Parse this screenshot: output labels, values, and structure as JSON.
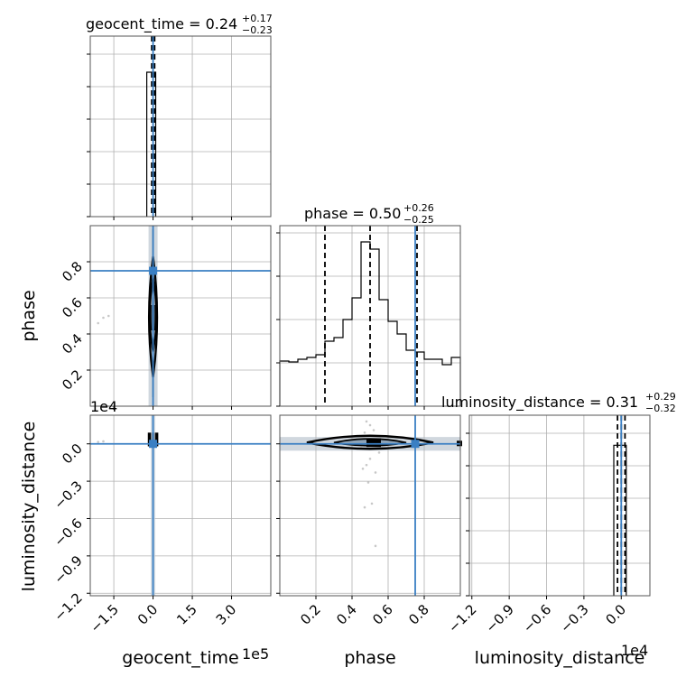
{
  "chart_data": {
    "type": "corner",
    "parameters": [
      "geocent_time",
      "phase",
      "luminosity_distance"
    ],
    "injection": {
      "geocent_time": 0,
      "phase": 0.75,
      "luminosity_distance": 0
    },
    "colors": {
      "injection": "#3a7fc3",
      "hist": "#000000",
      "grid": "#b0b0b0",
      "fill": "#c8d0d8"
    },
    "titles": {
      "geocent_time": {
        "name": "geocent_time",
        "median": "0.24",
        "plus": "+0.17",
        "minus": "−0.23"
      },
      "phase": {
        "name": "phase",
        "median": "0.50",
        "plus": "+0.26",
        "minus": "−0.25"
      },
      "luminosity_distance": {
        "name": "luminosity_distance",
        "median": "0.31",
        "plus": "+0.29",
        "minus": "−0.32"
      }
    },
    "axes": {
      "geocent_time": {
        "label": "geocent_time",
        "range": [
          -240000,
          450000
        ],
        "ticks": [
          -150000,
          0,
          150000,
          300000
        ],
        "tick_labels": [
          "−1.5",
          "0.0",
          "1.5",
          "3.0"
        ],
        "scale_label": "1e5"
      },
      "phase": {
        "label": "phase",
        "range": [
          0.0,
          1.0
        ],
        "ticks": [
          0.2,
          0.4,
          0.6,
          0.8
        ],
        "tick_labels": [
          "0.2",
          "0.4",
          "0.6",
          "0.8"
        ]
      },
      "luminosity_distance": {
        "label": "luminosity_distance",
        "range": [
          -12200,
          2300
        ],
        "ticks": [
          -12000,
          -9000,
          -6000,
          -3000,
          0
        ],
        "tick_labels": [
          "−1.2",
          "−0.9",
          "−0.6",
          "−0.3",
          "0.0"
        ],
        "scale_label": "1e4"
      }
    },
    "histograms": {
      "geocent_time": {
        "bin_edges": [
          -24000,
          10000
        ],
        "counts": [
          1.0
        ],
        "quantiles": [
          -5000,
          0,
          6000
        ],
        "ylim": [
          0,
          1.25
        ]
      },
      "phase": {
        "bin_edges": [
          0.0,
          0.05,
          0.1,
          0.15,
          0.2,
          0.25,
          0.3,
          0.35,
          0.4,
          0.45,
          0.5,
          0.55,
          0.6,
          0.65,
          0.7,
          0.75,
          0.8,
          0.85,
          0.9,
          0.95,
          1.0
        ],
        "counts": [
          0.25,
          0.245,
          0.26,
          0.27,
          0.285,
          0.36,
          0.38,
          0.48,
          0.6,
          0.91,
          0.87,
          0.59,
          0.47,
          0.4,
          0.31,
          0.3,
          0.26,
          0.26,
          0.23,
          0.27
        ],
        "quantiles": [
          0.25,
          0.5,
          0.76
        ],
        "ylim": [
          0,
          1.0
        ]
      },
      "luminosity_distance": {
        "bin_edges": [
          -600,
          400
        ],
        "counts": [
          1.0
        ],
        "quantiles": [
          -300,
          0,
          300
        ],
        "ylim": [
          0,
          1.2
        ]
      }
    },
    "scatter_outliers": {
      "phase_vs_geocent_time": [
        [
          -210000,
          0.46
        ],
        [
          -190000,
          0.49
        ],
        [
          -170000,
          0.5
        ]
      ],
      "luminosity_distance_vs_geocent_time": [
        [
          -210000,
          150
        ],
        [
          -190000,
          200
        ]
      ],
      "luminosity_distance_vs_phase": [
        [
          0.48,
          1800
        ],
        [
          0.5,
          1500
        ],
        [
          0.47,
          900
        ],
        [
          0.52,
          1100
        ],
        [
          0.45,
          -300
        ],
        [
          0.55,
          -700
        ],
        [
          0.5,
          -1200
        ],
        [
          0.48,
          -1700
        ],
        [
          0.46,
          -2000
        ],
        [
          0.53,
          -2300
        ],
        [
          0.49,
          -3100
        ],
        [
          0.51,
          -4800
        ],
        [
          0.47,
          -5100
        ],
        [
          0.53,
          -8200
        ]
      ]
    },
    "grid": true
  }
}
